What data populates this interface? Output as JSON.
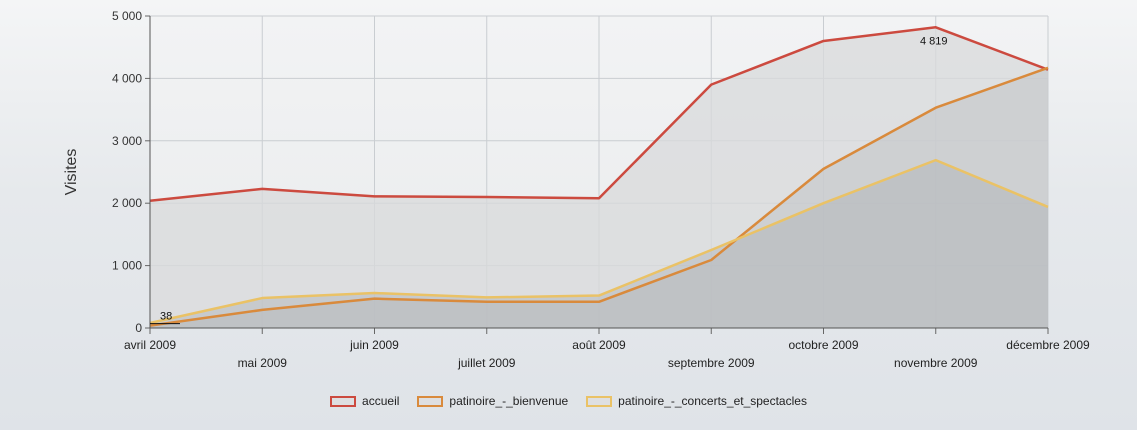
{
  "chart_data": {
    "type": "area",
    "title": "",
    "xlabel": "",
    "ylabel": "Visites",
    "categories": [
      "avril 2009",
      "mai 2009",
      "juin 2009",
      "juillet 2009",
      "août 2009",
      "septembre 2009",
      "octobre 2009",
      "novembre 2009",
      "décembre 2009"
    ],
    "yticks": [
      "0",
      "1 000",
      "2 000",
      "3 000",
      "4 000",
      "5 000"
    ],
    "ylim": [
      0,
      5000
    ],
    "grid": true,
    "legend_position": "bottom",
    "series": [
      {
        "name": "accueil",
        "color": "#cc4a3f",
        "values": [
          2040,
          2230,
          2110,
          2100,
          2080,
          3900,
          4600,
          4819,
          4140
        ]
      },
      {
        "name": "patinoire_-_bienvenue",
        "color": "#d98a3c",
        "values": [
          38,
          290,
          470,
          420,
          420,
          1090,
          2550,
          3530,
          4170
        ]
      },
      {
        "name": "patinoire_-_concerts_et_spectacles",
        "color": "#eac266",
        "values": [
          80,
          480,
          560,
          490,
          520,
          1250,
          2000,
          2690,
          1940
        ]
      }
    ],
    "annotations": [
      {
        "series": 0,
        "index": 7,
        "text": "4 819"
      },
      {
        "series": 1,
        "index": 0,
        "text": "38"
      }
    ]
  }
}
